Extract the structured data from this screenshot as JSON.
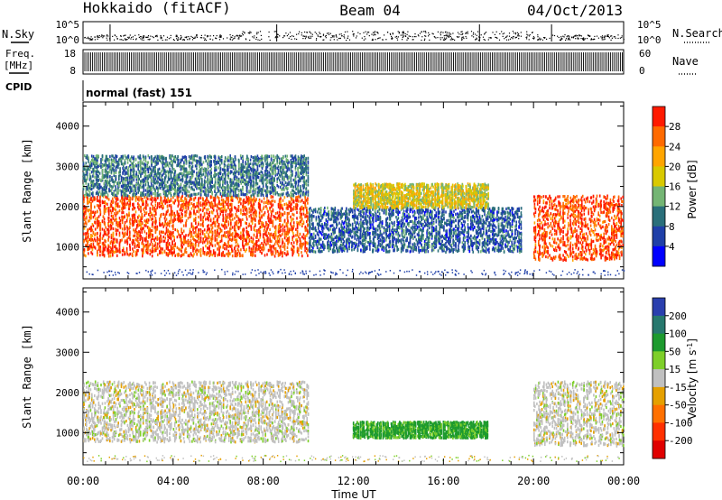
{
  "header": {
    "station": "Hokkaido (fitACF)",
    "beam": "Beam 04",
    "date": "04/Oct/2013"
  },
  "top_panels": {
    "nsky_label": "N.Sky",
    "nsky_ticks": [
      "10^5",
      "10^0"
    ],
    "nsearch_label": "N.Search",
    "nsearch_ticks": [
      "10^5",
      "10^0"
    ],
    "freq_label": "Freq.",
    "freq_unit": "[MHz]",
    "freq_ticks": [
      "18",
      "8"
    ],
    "nave_label": "Nave",
    "nave_ticks": [
      "60",
      "0"
    ],
    "cpid_label": "CPID",
    "cpid_value": "normal (fast) 151"
  },
  "power_scale": {
    "label": "Power [dB]",
    "ticks": [
      "28",
      "24",
      "20",
      "16",
      "12",
      "8",
      "4"
    ],
    "colors": [
      "#ff1a00",
      "#ff6a00",
      "#ffa500",
      "#d9c900",
      "#74b574",
      "#2a6f7a",
      "#1f3fa8",
      "#0000ff"
    ]
  },
  "velocity_scale": {
    "label": "Velocity [m s",
    "label_sup": "-1",
    "label_close": "]",
    "ticks": [
      "200",
      "100",
      "50",
      "15",
      "-15",
      "-50",
      "-100",
      "-200"
    ],
    "colors": [
      "#2a3fae",
      "#27786e",
      "#1d9a2e",
      "#7ecf2a",
      "#c0c0c0",
      "#e5a000",
      "#ff7000",
      "#ff3000",
      "#e00000"
    ]
  },
  "chart_data": [
    {
      "type": "heatmap",
      "name": "Power",
      "ylabel": "Slant Range [km]",
      "y_ticks": [
        "1000",
        "2000",
        "3000",
        "4000"
      ],
      "ylim": [
        200,
        4600
      ],
      "xlim": [
        0,
        24
      ],
      "grid": false,
      "echo_regions": [
        {
          "t_start": 0.0,
          "t_end": 10.0,
          "range_km": [
            800,
            2300
          ],
          "power_db": 28
        },
        {
          "t_start": 0.0,
          "t_end": 10.0,
          "range_km": [
            2300,
            3300
          ],
          "power_db": 10
        },
        {
          "t_start": 10.0,
          "t_end": 19.5,
          "range_km": [
            900,
            2000
          ],
          "power_db": 8
        },
        {
          "t_start": 12.0,
          "t_end": 18.0,
          "range_km": [
            2000,
            2600
          ],
          "power_db": 18
        },
        {
          "t_start": 20.0,
          "t_end": 24.0,
          "range_km": [
            700,
            2300
          ],
          "power_db": 28
        }
      ]
    },
    {
      "type": "heatmap",
      "name": "Velocity",
      "ylabel": "Slant Range [km]",
      "xlabel": "Time UT",
      "x_ticks": [
        "00:00",
        "04:00",
        "08:00",
        "12:00",
        "16:00",
        "20:00",
        "00:00"
      ],
      "y_ticks": [
        "1000",
        "2000",
        "3000",
        "4000"
      ],
      "ylim": [
        200,
        4600
      ],
      "xlim": [
        0,
        24
      ],
      "grid": false,
      "echo_regions": [
        {
          "t_start": 0.0,
          "t_end": 10.0,
          "range_km": [
            800,
            2300
          ],
          "velocity": 0
        },
        {
          "t_start": 12.0,
          "t_end": 18.0,
          "range_km": [
            900,
            1300
          ],
          "velocity": 40
        },
        {
          "t_start": 20.0,
          "t_end": 24.0,
          "range_km": [
            700,
            2300
          ],
          "velocity": 0
        }
      ]
    }
  ]
}
